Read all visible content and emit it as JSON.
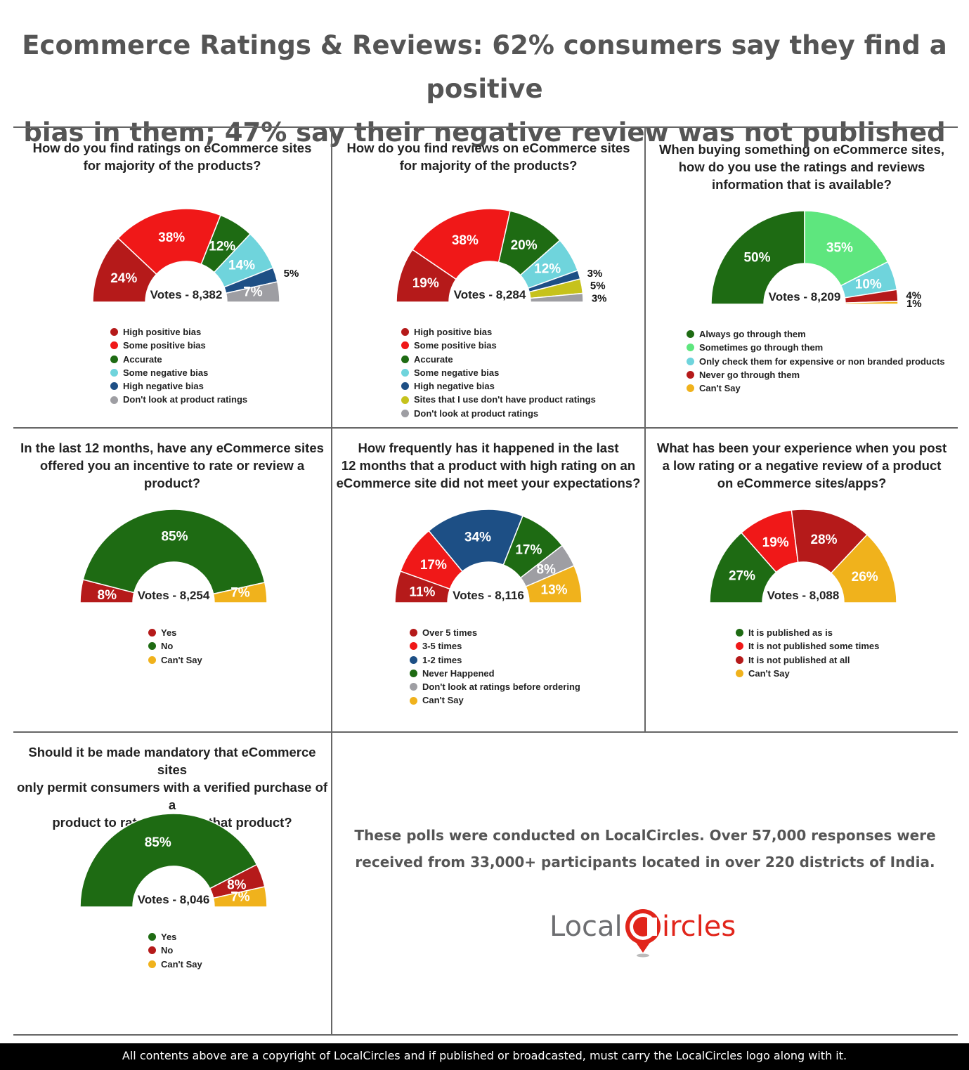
{
  "title_line1": "Ecommerce Ratings & Reviews: 62% consumers say they find a positive",
  "title_line2": "bias in them; 47% say their negative review was not published",
  "note_line1": "These polls were conducted on LocalCircles. Over 57,000 responses were",
  "note_line2": "received from 33,000+ participants located in over 220 districts of India.",
  "logo": {
    "text_left": "Local",
    "text_c": "C",
    "text_right": "ircles",
    "color_text": "#6d6e71",
    "color_red": "#e1251b"
  },
  "footer": "All contents above are a copyright of LocalCircles and if published or broadcasted, must carry the LocalCircles logo along with it.",
  "chart_data": [
    {
      "type": "pie",
      "question": [
        "How do you find ratings on eCommerce sites",
        "for majority of the products?"
      ],
      "votes_label": "Votes - 8,382",
      "slices": [
        {
          "label": "High positive bias",
          "value": 24,
          "text": "24%",
          "color": "#b51a1a"
        },
        {
          "label": "Some positive bias",
          "value": 38,
          "text": "38%",
          "color": "#f01818"
        },
        {
          "label": "Accurate",
          "value": 12,
          "text": "12%",
          "color": "#1e6b13"
        },
        {
          "label": "Some negative bias",
          "value": 14,
          "text": "14%",
          "color": "#6fd4dc"
        },
        {
          "label": "High negative bias",
          "value": 5,
          "text": "5%",
          "color": "#1d4f85"
        },
        {
          "label": "Don't look at product ratings",
          "value": 7,
          "text": "7%",
          "color": "#9e9ea3"
        }
      ]
    },
    {
      "type": "pie",
      "question": [
        "How do you find reviews on eCommerce sites",
        "for majority of the products?"
      ],
      "votes_label": "Votes - 8,284",
      "slices": [
        {
          "label": "High positive bias",
          "value": 19,
          "text": "19%",
          "color": "#b51a1a"
        },
        {
          "label": "Some positive bias",
          "value": 38,
          "text": "38%",
          "color": "#f01818"
        },
        {
          "label": "Accurate",
          "value": 20,
          "text": "20%",
          "color": "#1e6b13"
        },
        {
          "label": "Some negative bias",
          "value": 12,
          "text": "12%",
          "color": "#6fd4dc"
        },
        {
          "label": "High negative bias",
          "value": 3,
          "text": "3%",
          "color": "#1d4f85"
        },
        {
          "label": "Sites that I use don't have product ratings",
          "value": 5,
          "text": "5%",
          "color": "#c6c21c"
        },
        {
          "label": "Don't look at product ratings",
          "value": 3,
          "text": "3%",
          "color": "#9e9ea3"
        }
      ]
    },
    {
      "type": "pie",
      "question": [
        "When buying something on eCommerce sites,",
        "how do you use the ratings and reviews",
        "information that is available?"
      ],
      "votes_label": "Votes - 8,209",
      "slices": [
        {
          "label": "Always go through them",
          "value": 50,
          "text": "50%",
          "color": "#1e6b13"
        },
        {
          "label": "Sometimes go through them",
          "value": 35,
          "text": "35%",
          "color": "#5ee67e"
        },
        {
          "label": "Only check them for expensive or non branded products",
          "value": 10,
          "text": "10%",
          "color": "#6fd4dc"
        },
        {
          "label": "Never go through them",
          "value": 4,
          "text": "4%",
          "color": "#b51a1a"
        },
        {
          "label": "Can't Say",
          "value": 1,
          "text": "1%",
          "color": "#f0b21c"
        }
      ]
    },
    {
      "type": "pie",
      "question": [
        "In the last 12 months, have any eCommerce sites",
        "offered you an incentive to rate or review a product?"
      ],
      "votes_label": "Votes - 8,254",
      "slices": [
        {
          "label": "Yes",
          "value": 8,
          "text": "8%",
          "color": "#b51a1a"
        },
        {
          "label": "No",
          "value": 85,
          "text": "85%",
          "color": "#1e6b13"
        },
        {
          "label": "Can't Say",
          "value": 7,
          "text": "7%",
          "color": "#f0b21c"
        }
      ]
    },
    {
      "type": "pie",
      "question": [
        "How frequently has it happened in the last",
        "12 months that a product with high rating on an",
        "eCommerce site did not meet your expectations?"
      ],
      "votes_label": "Votes - 8,116",
      "slices": [
        {
          "label": "Over 5 times",
          "value": 11,
          "text": "11%",
          "color": "#b51a1a"
        },
        {
          "label": "3-5 times",
          "value": 17,
          "text": "17%",
          "color": "#f01818"
        },
        {
          "label": "1-2 times",
          "value": 34,
          "text": "34%",
          "color": "#1d4f85"
        },
        {
          "label": "Never Happened",
          "value": 17,
          "text": "17%",
          "color": "#1e6b13"
        },
        {
          "label": "Don't look at ratings before ordering",
          "value": 8,
          "text": "8%",
          "color": "#9e9ea3"
        },
        {
          "label": "Can't Say",
          "value": 13,
          "text": "13%",
          "color": "#f0b21c"
        }
      ]
    },
    {
      "type": "pie",
      "question": [
        "What has been your experience when you post",
        "a low rating or a negative review of a product",
        "on eCommerce sites/apps?"
      ],
      "votes_label": "Votes - 8,088",
      "slices": [
        {
          "label": "It is published as is",
          "value": 27,
          "text": "27%",
          "color": "#1e6b13"
        },
        {
          "label": "It is not published some times",
          "value": 19,
          "text": "19%",
          "color": "#f01818"
        },
        {
          "label": "It is not published at all",
          "value": 28,
          "text": "28%",
          "color": "#b51a1a"
        },
        {
          "label": "Can't Say",
          "value": 26,
          "text": "26%",
          "color": "#f0b21c"
        }
      ]
    },
    {
      "type": "pie",
      "question": [
        "Should it be made mandatory that eCommerce sites",
        "only permit consumers with a verified purchase of a",
        "product to rate or review that product?"
      ],
      "votes_label": "Votes - 8,046",
      "slices": [
        {
          "label": "Yes",
          "value": 85,
          "text": "85%",
          "color": "#1e6b13"
        },
        {
          "label": "No",
          "value": 8,
          "text": "8%",
          "color": "#b51a1a"
        },
        {
          "label": "Can't Say",
          "value": 7,
          "text": "7%",
          "color": "#f0b21c"
        }
      ]
    }
  ]
}
